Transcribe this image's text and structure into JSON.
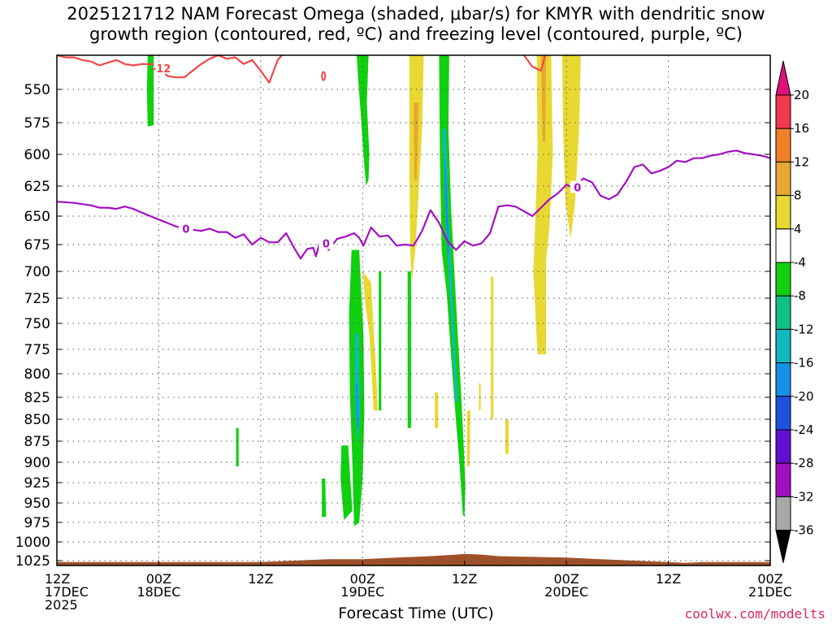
{
  "chart_data": {
    "type": "heatmap",
    "title_line1": "2025121712 NAM Forecast Omega (shaded, μbar/s) for KMYR with dendritic snow",
    "title_line2": "growth region (contoured, red, ºC) and freezing level (contoured, purple, ºC)",
    "xlabel": "Forecast Time (UTC)",
    "ylabel": "",
    "credit": "coolwx.com/modelts",
    "y_levels": [
      "550",
      "575",
      "600",
      "625",
      "650",
      "675",
      "700",
      "725",
      "750",
      "775",
      "800",
      "825",
      "850",
      "875",
      "900",
      "925",
      "950",
      "975",
      "1000",
      "1025"
    ],
    "y_values": [
      550,
      575,
      600,
      625,
      650,
      675,
      700,
      725,
      750,
      775,
      800,
      825,
      850,
      875,
      900,
      925,
      950,
      975,
      1000,
      1025
    ],
    "ylim_hpa": [
      520,
      1035
    ],
    "xlim_hours": [
      0,
      84
    ],
    "x_ticks": [
      {
        "hour": 0,
        "line1": "12Z",
        "line2": "17DEC",
        "line3": "2025"
      },
      {
        "hour": 12,
        "line1": "00Z",
        "line2": "18DEC",
        "line3": ""
      },
      {
        "hour": 24,
        "line1": "12Z",
        "line2": "",
        "line3": ""
      },
      {
        "hour": 36,
        "line1": "00Z",
        "line2": "19DEC",
        "line3": ""
      },
      {
        "hour": 48,
        "line1": "12Z",
        "line2": "",
        "line3": ""
      },
      {
        "hour": 60,
        "line1": "00Z",
        "line2": "20DEC",
        "line3": ""
      },
      {
        "hour": 72,
        "line1": "12Z",
        "line2": "",
        "line3": ""
      },
      {
        "hour": 84,
        "line1": "00Z",
        "line2": "21DEC",
        "line3": ""
      }
    ],
    "colorbar": {
      "labels": [
        "20",
        "16",
        "12",
        "8",
        "4",
        "-4",
        "-8",
        "-12",
        "-16",
        "-20",
        "-24",
        "-28",
        "-32",
        "-36"
      ],
      "colors": [
        "#ee3a4a",
        "#f07f2a",
        "#e6a832",
        "#e8d832",
        "#ffffff",
        "#10d010",
        "#10c080",
        "#10b8c0",
        "#1890e8",
        "#2050e0",
        "#6010d0",
        "#a010c0",
        "#a8a8a8"
      ],
      "top_color": "#e0107a",
      "bottom_color": "#000000"
    },
    "colors": {
      "dgz_contour": "#f04848",
      "freezing_level": "#a010c0",
      "terrain": "#a05028"
    },
    "dgz_label": "-12",
    "freezing_label": "0",
    "freezing_level_hpa": [
      [
        0,
        638
      ],
      [
        2,
        639
      ],
      [
        4,
        641
      ],
      [
        5,
        643
      ],
      [
        6,
        643
      ],
      [
        7,
        644
      ],
      [
        8,
        642
      ],
      [
        9,
        644
      ],
      [
        10,
        647
      ],
      [
        11,
        650
      ],
      [
        12,
        653
      ],
      [
        13,
        656
      ],
      [
        14,
        659
      ],
      [
        15,
        661
      ],
      [
        16,
        662
      ],
      [
        17,
        663
      ],
      [
        18,
        661
      ],
      [
        19,
        664
      ],
      [
        20,
        664
      ],
      [
        21,
        669
      ],
      [
        22,
        666
      ],
      [
        23,
        675
      ],
      [
        24,
        669
      ],
      [
        25,
        673
      ],
      [
        26,
        673
      ],
      [
        27,
        665
      ],
      [
        28,
        679
      ],
      [
        28.7,
        688
      ],
      [
        29.5,
        679
      ],
      [
        30.2,
        678
      ],
      [
        30.5,
        686
      ],
      [
        31,
        672
      ],
      [
        31.6,
        674
      ],
      [
        32,
        680
      ],
      [
        33,
        670
      ],
      [
        34,
        668
      ],
      [
        35,
        665
      ],
      [
        35.6,
        669
      ],
      [
        36.1,
        676
      ],
      [
        37,
        660
      ],
      [
        38,
        668
      ],
      [
        39,
        667
      ],
      [
        40,
        676
      ],
      [
        41,
        675
      ],
      [
        42,
        676
      ],
      [
        43,
        663
      ],
      [
        44,
        645
      ],
      [
        45,
        656
      ],
      [
        46,
        672
      ],
      [
        47,
        680
      ],
      [
        48,
        672
      ],
      [
        49,
        676
      ],
      [
        50,
        674
      ],
      [
        51,
        665
      ],
      [
        52,
        642
      ],
      [
        53,
        641
      ],
      [
        54,
        642
      ],
      [
        55,
        646
      ],
      [
        56,
        650
      ],
      [
        57,
        643
      ],
      [
        58,
        636
      ],
      [
        59,
        631
      ],
      [
        60,
        624
      ],
      [
        61,
        627
      ],
      [
        62,
        619
      ],
      [
        63,
        622
      ],
      [
        64,
        633
      ],
      [
        65,
        636
      ],
      [
        66,
        632
      ],
      [
        67,
        622
      ],
      [
        68,
        610
      ],
      [
        69,
        608
      ],
      [
        70,
        615
      ],
      [
        71,
        613
      ],
      [
        72,
        610
      ],
      [
        73,
        605
      ],
      [
        74,
        606
      ],
      [
        75,
        603
      ],
      [
        76,
        603
      ],
      [
        77,
        601
      ],
      [
        78,
        600
      ],
      [
        79,
        598
      ],
      [
        80,
        597
      ],
      [
        81,
        599
      ],
      [
        82,
        600
      ],
      [
        83,
        601
      ],
      [
        84,
        603
      ]
    ],
    "dgz_contour_hpa": [
      [
        0,
        524
      ],
      [
        1,
        526
      ],
      [
        2,
        526
      ],
      [
        3,
        528
      ],
      [
        4,
        529
      ],
      [
        5,
        532
      ],
      [
        6,
        530
      ],
      [
        7,
        528
      ],
      [
        8,
        531
      ],
      [
        9,
        532
      ],
      [
        10,
        531
      ],
      [
        11,
        531
      ],
      [
        12,
        532
      ],
      [
        13,
        540
      ],
      [
        14,
        541
      ],
      [
        15,
        541
      ],
      [
        16,
        536
      ],
      [
        17,
        531
      ],
      [
        18,
        527
      ],
      [
        19,
        524
      ],
      [
        20,
        527
      ],
      [
        21,
        526
      ],
      [
        22,
        531
      ],
      [
        23,
        528
      ],
      [
        24,
        536
      ],
      [
        25,
        545
      ],
      [
        26,
        528
      ],
      [
        26.5,
        520
      ]
    ],
    "dgz_contour2_hpa": [
      [
        55,
        520
      ],
      [
        56,
        533
      ],
      [
        57,
        536
      ],
      [
        57.5,
        520
      ]
    ],
    "omega_regions": [
      {
        "value": -6,
        "hours_hpa": [
          [
            10.7,
            520
          ],
          [
            11.4,
            520
          ],
          [
            11.4,
            577
          ],
          [
            10.7,
            578
          ],
          [
            10.6,
            550
          ]
        ]
      },
      {
        "value": -6,
        "hours_hpa": [
          [
            35.3,
            520
          ],
          [
            36.7,
            520
          ],
          [
            36.5,
            560
          ],
          [
            36.8,
            600
          ],
          [
            36.7,
            620
          ],
          [
            36.4,
            625
          ],
          [
            36.1,
            600
          ],
          [
            35.8,
            570
          ],
          [
            35.5,
            545
          ]
        ]
      },
      {
        "value": 6,
        "hours_hpa": [
          [
            41.5,
            520
          ],
          [
            43.2,
            520
          ],
          [
            43.0,
            580
          ],
          [
            42.6,
            630
          ],
          [
            42.2,
            680
          ],
          [
            41.8,
            710
          ],
          [
            41.6,
            680
          ],
          [
            41.5,
            600
          ]
        ]
      },
      {
        "value": 10,
        "hours_hpa": [
          [
            42.0,
            560
          ],
          [
            42.6,
            560
          ],
          [
            42.4,
            620
          ],
          [
            42.1,
            620
          ]
        ]
      },
      {
        "value": -6,
        "hours_hpa": [
          [
            45.0,
            520
          ],
          [
            46.2,
            520
          ],
          [
            46.1,
            580
          ],
          [
            46.4,
            640
          ],
          [
            46.8,
            700
          ],
          [
            47.2,
            760
          ],
          [
            47.6,
            820
          ],
          [
            47.9,
            880
          ],
          [
            48.1,
            930
          ],
          [
            48.0,
            968
          ],
          [
            47.8,
            965
          ],
          [
            47.4,
            900
          ],
          [
            46.9,
            840
          ],
          [
            46.4,
            780
          ],
          [
            45.9,
            720
          ],
          [
            45.3,
            680
          ],
          [
            45.1,
            600
          ]
        ]
      },
      {
        "value": -12,
        "hours_hpa": [
          [
            45.4,
            580
          ],
          [
            45.8,
            580
          ],
          [
            46.2,
            660
          ],
          [
            46.8,
            760
          ],
          [
            47.2,
            830
          ],
          [
            46.9,
            830
          ],
          [
            46.4,
            740
          ],
          [
            45.8,
            660
          ]
        ]
      },
      {
        "value": -16,
        "hours_hpa": [
          [
            45.6,
            600
          ],
          [
            45.9,
            620
          ],
          [
            46.2,
            680
          ],
          [
            46.0,
            690
          ],
          [
            45.7,
            640
          ]
        ]
      },
      {
        "value": -6,
        "hours_hpa": [
          [
            34.7,
            680
          ],
          [
            35.6,
            680
          ],
          [
            36.1,
            760
          ],
          [
            36.2,
            840
          ],
          [
            36.0,
            920
          ],
          [
            35.6,
            975
          ],
          [
            35.0,
            980
          ],
          [
            34.8,
            900
          ],
          [
            34.5,
            820
          ],
          [
            34.4,
            740
          ]
        ]
      },
      {
        "value": -12,
        "hours_hpa": [
          [
            35.1,
            760
          ],
          [
            35.5,
            760
          ],
          [
            35.7,
            840
          ],
          [
            35.4,
            880
          ],
          [
            35.1,
            840
          ]
        ]
      },
      {
        "value": -16,
        "hours_hpa": [
          [
            35.2,
            810
          ],
          [
            35.4,
            810
          ],
          [
            35.5,
            860
          ],
          [
            35.3,
            860
          ]
        ]
      },
      {
        "value": -6,
        "hours_hpa": [
          [
            33.5,
            880
          ],
          [
            34.3,
            880
          ],
          [
            34.8,
            960
          ],
          [
            33.8,
            972
          ],
          [
            33.4,
            920
          ]
        ]
      },
      {
        "value": -6,
        "hours_hpa": [
          [
            31.2,
            920
          ],
          [
            31.6,
            920
          ],
          [
            31.7,
            968
          ],
          [
            31.2,
            968
          ]
        ]
      },
      {
        "value": -6,
        "hours_hpa": [
          [
            21.1,
            860
          ],
          [
            21.4,
            860
          ],
          [
            21.4,
            905
          ],
          [
            21.1,
            905
          ]
        ]
      },
      {
        "value": 6,
        "hours_hpa": [
          [
            36.0,
            700
          ],
          [
            37.0,
            710
          ],
          [
            37.6,
            800
          ],
          [
            37.8,
            840
          ],
          [
            37.3,
            840
          ],
          [
            36.8,
            760
          ],
          [
            36.3,
            730
          ]
        ]
      },
      {
        "value": -6,
        "hours_hpa": [
          [
            37.9,
            700
          ],
          [
            38.2,
            700
          ],
          [
            38.2,
            840
          ],
          [
            37.9,
            840
          ]
        ]
      },
      {
        "value": -6,
        "hours_hpa": [
          [
            41.3,
            700
          ],
          [
            41.7,
            700
          ],
          [
            41.7,
            860
          ],
          [
            41.3,
            860
          ]
        ]
      },
      {
        "value": 6,
        "hours_hpa": [
          [
            44.5,
            820
          ],
          [
            44.9,
            820
          ],
          [
            44.9,
            860
          ],
          [
            44.5,
            860
          ]
        ]
      },
      {
        "value": 6,
        "hours_hpa": [
          [
            48.3,
            840
          ],
          [
            48.7,
            840
          ],
          [
            48.6,
            905
          ],
          [
            48.3,
            905
          ]
        ]
      },
      {
        "value": 6,
        "hours_hpa": [
          [
            49.7,
            810
          ],
          [
            49.9,
            810
          ],
          [
            49.9,
            840
          ],
          [
            49.7,
            840
          ]
        ]
      },
      {
        "value": 6,
        "hours_hpa": [
          [
            51.1,
            705
          ],
          [
            51.4,
            705
          ],
          [
            51.4,
            850
          ],
          [
            51.1,
            850
          ]
        ]
      },
      {
        "value": 6,
        "hours_hpa": [
          [
            52.8,
            850
          ],
          [
            53.2,
            850
          ],
          [
            53.2,
            890
          ],
          [
            52.8,
            890
          ]
        ]
      },
      {
        "value": 6,
        "hours_hpa": [
          [
            56.5,
            520
          ],
          [
            58.2,
            520
          ],
          [
            58.4,
            600
          ],
          [
            58.0,
            660
          ],
          [
            57.6,
            690
          ],
          [
            57.6,
            780
          ],
          [
            56.6,
            780
          ],
          [
            56.1,
            700
          ],
          [
            56.3,
            660
          ],
          [
            56.6,
            600
          ]
        ]
      },
      {
        "value": 10,
        "hours_hpa": [
          [
            57.0,
            520
          ],
          [
            57.6,
            520
          ],
          [
            57.5,
            590
          ],
          [
            57.2,
            590
          ]
        ]
      },
      {
        "value": 6,
        "hours_hpa": [
          [
            59.5,
            520
          ],
          [
            61.7,
            520
          ],
          [
            61.5,
            580
          ],
          [
            61.0,
            640
          ],
          [
            60.5,
            670
          ],
          [
            59.9,
            640
          ],
          [
            59.6,
            580
          ]
        ]
      }
    ],
    "terrain_hpa": [
      [
        0,
        1027
      ],
      [
        4,
        1027
      ],
      [
        8,
        1027
      ],
      [
        12,
        1027
      ],
      [
        16,
        1027
      ],
      [
        20,
        1027
      ],
      [
        24,
        1027
      ],
      [
        28,
        1025
      ],
      [
        32,
        1023
      ],
      [
        36,
        1023
      ],
      [
        40,
        1021
      ],
      [
        44,
        1019
      ],
      [
        47,
        1017
      ],
      [
        48,
        1016
      ],
      [
        50,
        1017
      ],
      [
        52,
        1019
      ],
      [
        56,
        1020
      ],
      [
        60,
        1021
      ],
      [
        64,
        1023
      ],
      [
        68,
        1025
      ],
      [
        72,
        1027
      ],
      [
        74,
        1028
      ],
      [
        76,
        1027
      ],
      [
        80,
        1027
      ],
      [
        84,
        1027
      ]
    ]
  }
}
